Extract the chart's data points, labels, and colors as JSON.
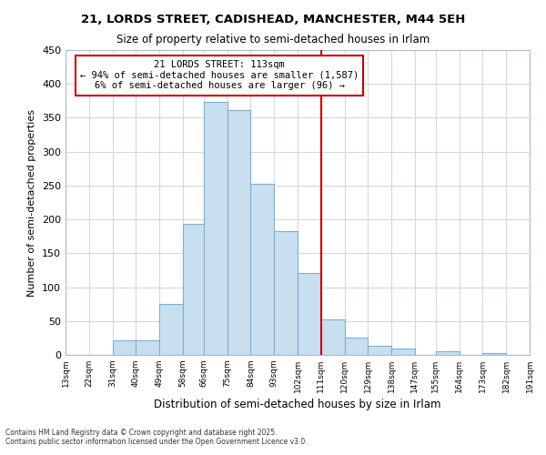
{
  "title1": "21, LORDS STREET, CADISHEAD, MANCHESTER, M44 5EH",
  "title2": "Size of property relative to semi-detached houses in Irlam",
  "xlabel": "Distribution of semi-detached houses by size in Irlam",
  "ylabel": "Number of semi-detached properties",
  "footnote": "Contains HM Land Registry data © Crown copyright and database right 2025.\nContains public sector information licensed under the Open Government Licence v3.0.",
  "annotation_title": "21 LORDS STREET: 113sqm",
  "annotation_line1": "← 94% of semi-detached houses are smaller (1,587)",
  "annotation_line2": "6% of semi-detached houses are larger (96) →",
  "property_line_x": 111,
  "bar_lefts": [
    13,
    22,
    31,
    40,
    49,
    58,
    66,
    75,
    84,
    93,
    102,
    111,
    120,
    129,
    138,
    147,
    155,
    164,
    173,
    182
  ],
  "bar_widths": [
    9,
    9,
    9,
    9,
    9,
    8,
    9,
    9,
    9,
    9,
    9,
    9,
    9,
    9,
    9,
    8,
    9,
    9,
    9,
    9
  ],
  "bar_heights": [
    0,
    0,
    22,
    22,
    75,
    193,
    373,
    362,
    252,
    183,
    121,
    53,
    25,
    14,
    9,
    0,
    6,
    0,
    3,
    0
  ],
  "bar_color": "#c8dff0",
  "bar_edgecolor": "#7bafd4",
  "vline_color": "#cc0000",
  "annotation_box_edgecolor": "#cc0000",
  "background_color": "#ffffff",
  "ylim": [
    0,
    450
  ],
  "yticks": [
    0,
    50,
    100,
    150,
    200,
    250,
    300,
    350,
    400,
    450
  ],
  "xlim_left": 13,
  "xlim_right": 191,
  "tick_labels": [
    "13sqm",
    "22sqm",
    "31sqm",
    "40sqm",
    "49sqm",
    "58sqm",
    "66sqm",
    "75sqm",
    "84sqm",
    "93sqm",
    "102sqm",
    "111sqm",
    "120sqm",
    "129sqm",
    "138sqm",
    "147sqm",
    "155sqm",
    "164sqm",
    "173sqm",
    "182sqm",
    "191sqm"
  ]
}
